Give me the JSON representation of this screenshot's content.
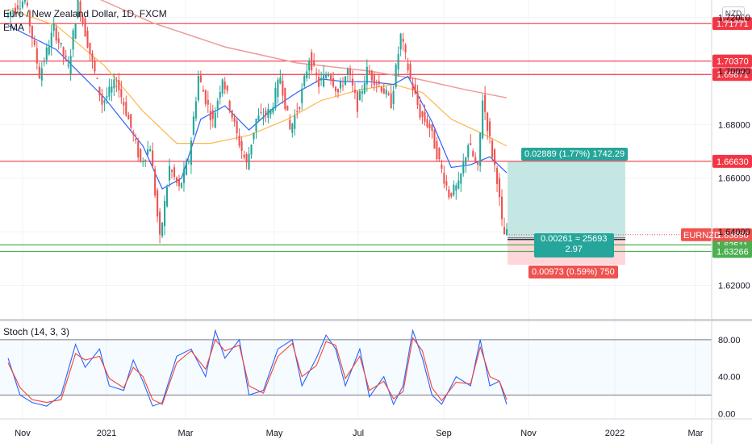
{
  "header": {
    "symbol_title": "Euro / New Zealand Dollar, 1D, FXCM",
    "indicator": "EMA",
    "currency_badge": "NZD",
    "stoch_title": "Stoch (14, 3, 3)"
  },
  "colors": {
    "bull": "#26a69a",
    "bear": "#ef5350",
    "level_line": "#f23645",
    "support_line": "#4caf50",
    "ema_fast": "#2962ff",
    "ema_mid": "#ffb74d",
    "ema_slow": "#ef9a9a",
    "target_zone": "#b2dfdb",
    "stop_zone": "#ffcdd2",
    "stoch_k": "#2962ff",
    "stoch_d": "#f44336"
  },
  "position": {
    "target_label": "0.02889 (1.77%) 1742.29",
    "stop_label": "0.00973 (0.59%) 750",
    "center_label_line1": "0.00261 ≈ 25693",
    "center_label_line2": "2.97",
    "target_price": 1.6663,
    "entry_price": 1.6374,
    "stop_price": 1.6277
  },
  "chart_data": [
    {
      "type": "candlestick",
      "title": "Euro / New Zealand Dollar, 1D, FXCM",
      "x_ticks": [
        "Nov",
        "2021",
        "Mar",
        "May",
        "Jul",
        "Sep",
        "Nov",
        "2022",
        "Mar"
      ],
      "y_ticks": [
        "1.72000",
        "1.70000",
        "1.68000",
        "1.66000",
        "1.64000",
        "1.62000"
      ],
      "ylim": [
        1.6075,
        1.7265
      ],
      "horizontal_levels": [
        {
          "price": 1.71771,
          "label": "1.71771",
          "kind": "resistance"
        },
        {
          "price": 1.7037,
          "label": "1.70370",
          "kind": "resistance"
        },
        {
          "price": 1.69871,
          "label": "1.69871",
          "kind": "resistance"
        },
        {
          "price": 1.6663,
          "label": "1.66630",
          "kind": "resistance"
        },
        {
          "price": 1.63511,
          "label": "1.63511",
          "kind": "support"
        },
        {
          "price": 1.63266,
          "label": "1.63266",
          "kind": "support"
        }
      ],
      "last_price": {
        "symbol": "EURNZD",
        "price": 1.6389,
        "label": "1.63890"
      },
      "price_path": [
        [
          0,
          1.7205
        ],
        [
          8,
          1.727
        ],
        [
          14,
          1.6985
        ],
        [
          20,
          1.716
        ],
        [
          26,
          1.701
        ],
        [
          30,
          1.726
        ],
        [
          36,
          1.703
        ],
        [
          40,
          1.688
        ],
        [
          46,
          1.696
        ],
        [
          50,
          1.685
        ],
        [
          56,
          1.666
        ],
        [
          60,
          1.672
        ],
        [
          64,
          1.637
        ],
        [
          68,
          1.664
        ],
        [
          72,
          1.656
        ],
        [
          76,
          1.667
        ],
        [
          80,
          1.698
        ],
        [
          86,
          1.681
        ],
        [
          90,
          1.698
        ],
        [
          96,
          1.676
        ],
        [
          100,
          1.665
        ],
        [
          104,
          1.682
        ],
        [
          110,
          1.685
        ],
        [
          114,
          1.698
        ],
        [
          118,
          1.678
        ],
        [
          122,
          1.688
        ],
        [
          126,
          1.705
        ],
        [
          130,
          1.695
        ],
        [
          134,
          1.7
        ],
        [
          138,
          1.692
        ],
        [
          142,
          1.7
        ],
        [
          146,
          1.687
        ],
        [
          150,
          1.7
        ],
        [
          156,
          1.694
        ],
        [
          160,
          1.688
        ],
        [
          164,
          1.713
        ],
        [
          168,
          1.697
        ],
        [
          172,
          1.684
        ],
        [
          176,
          1.679
        ],
        [
          180,
          1.666
        ],
        [
          184,
          1.654
        ],
        [
          188,
          1.657
        ],
        [
          192,
          1.673
        ],
        [
          196,
          1.663
        ],
        [
          198,
          1.69
        ],
        [
          202,
          1.669
        ],
        [
          204,
          1.66
        ],
        [
          206,
          1.643
        ],
        [
          207,
          1.639
        ]
      ],
      "ema_fast": [
        [
          0,
          1.717
        ],
        [
          20,
          1.708
        ],
        [
          40,
          1.69
        ],
        [
          56,
          1.672
        ],
        [
          64,
          1.656
        ],
        [
          72,
          1.66
        ],
        [
          80,
          1.682
        ],
        [
          90,
          1.687
        ],
        [
          100,
          1.678
        ],
        [
          110,
          1.686
        ],
        [
          120,
          1.692
        ],
        [
          130,
          1.697
        ],
        [
          140,
          1.696
        ],
        [
          150,
          1.696
        ],
        [
          160,
          1.695
        ],
        [
          166,
          1.698
        ],
        [
          176,
          1.681
        ],
        [
          184,
          1.664
        ],
        [
          192,
          1.665
        ],
        [
          200,
          1.668
        ],
        [
          207,
          1.662
        ]
      ],
      "ema_mid": [
        [
          0,
          1.723
        ],
        [
          20,
          1.717
        ],
        [
          40,
          1.702
        ],
        [
          56,
          1.685
        ],
        [
          70,
          1.673
        ],
        [
          84,
          1.673
        ],
        [
          100,
          1.676
        ],
        [
          116,
          1.682
        ],
        [
          130,
          1.689
        ],
        [
          146,
          1.693
        ],
        [
          160,
          1.695
        ],
        [
          172,
          1.692
        ],
        [
          184,
          1.682
        ],
        [
          196,
          1.677
        ],
        [
          207,
          1.672
        ]
      ],
      "ema_slow": [
        [
          0,
          1.74
        ],
        [
          30,
          1.73
        ],
        [
          60,
          1.718
        ],
        [
          90,
          1.709
        ],
        [
          120,
          1.703
        ],
        [
          150,
          1.7
        ],
        [
          170,
          1.697
        ],
        [
          190,
          1.693
        ],
        [
          207,
          1.69
        ]
      ]
    },
    {
      "type": "line",
      "title": "Stoch (14, 3, 3)",
      "y_ticks": [
        "80.00",
        "40.00",
        "0.00"
      ],
      "ylim": [
        -5,
        100
      ],
      "bands": [
        80,
        20
      ],
      "series": [
        {
          "values": [
            [
              0,
              60
            ],
            [
              5,
              20
            ],
            [
              10,
              12
            ],
            [
              16,
              8
            ],
            [
              22,
              20
            ],
            [
              28,
              75
            ],
            [
              32,
              50
            ],
            [
              38,
              70
            ],
            [
              42,
              30
            ],
            [
              48,
              25
            ],
            [
              52,
              58
            ],
            [
              56,
              35
            ],
            [
              60,
              8
            ],
            [
              64,
              12
            ],
            [
              70,
              62
            ],
            [
              76,
              70
            ],
            [
              82,
              40
            ],
            [
              86,
              90
            ],
            [
              90,
              60
            ],
            [
              96,
              80
            ],
            [
              100,
              20
            ],
            [
              106,
              25
            ],
            [
              112,
              70
            ],
            [
              118,
              80
            ],
            [
              122,
              30
            ],
            [
              128,
              60
            ],
            [
              132,
              85
            ],
            [
              136,
              70
            ],
            [
              140,
              30
            ],
            [
              146,
              70
            ],
            [
              150,
              18
            ],
            [
              156,
              40
            ],
            [
              160,
              10
            ],
            [
              164,
              30
            ],
            [
              168,
              90
            ],
            [
              172,
              60
            ],
            [
              176,
              20
            ],
            [
              180,
              10
            ],
            [
              186,
              40
            ],
            [
              192,
              30
            ],
            [
              196,
              80
            ],
            [
              200,
              30
            ],
            [
              204,
              35
            ],
            [
              207,
              10
            ]
          ]
        },
        {
          "values": [
            [
              0,
              55
            ],
            [
              5,
              28
            ],
            [
              10,
              15
            ],
            [
              16,
              12
            ],
            [
              22,
              15
            ],
            [
              28,
              65
            ],
            [
              32,
              58
            ],
            [
              38,
              62
            ],
            [
              42,
              38
            ],
            [
              48,
              28
            ],
            [
              52,
              50
            ],
            [
              56,
              40
            ],
            [
              60,
              15
            ],
            [
              64,
              10
            ],
            [
              70,
              55
            ],
            [
              76,
              68
            ],
            [
              82,
              48
            ],
            [
              86,
              80
            ],
            [
              90,
              68
            ],
            [
              96,
              74
            ],
            [
              100,
              30
            ],
            [
              106,
              22
            ],
            [
              112,
              62
            ],
            [
              118,
              76
            ],
            [
              122,
              40
            ],
            [
              128,
              52
            ],
            [
              132,
              78
            ],
            [
              136,
              74
            ],
            [
              140,
              38
            ],
            [
              146,
              62
            ],
            [
              150,
              25
            ],
            [
              156,
              35
            ],
            [
              160,
              16
            ],
            [
              164,
              24
            ],
            [
              168,
              82
            ],
            [
              172,
              68
            ],
            [
              176,
              28
            ],
            [
              180,
              14
            ],
            [
              186,
              34
            ],
            [
              192,
              32
            ],
            [
              196,
              72
            ],
            [
              200,
              40
            ],
            [
              204,
              35
            ],
            [
              207,
              15
            ]
          ]
        }
      ]
    }
  ]
}
